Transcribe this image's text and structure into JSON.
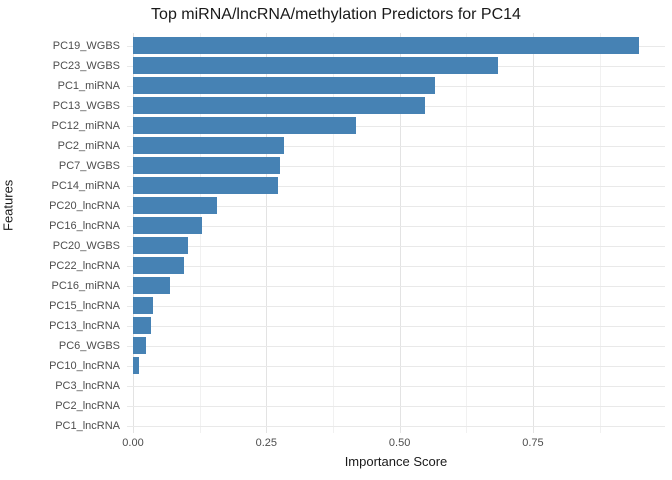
{
  "chart_data": {
    "type": "bar",
    "orientation": "horizontal",
    "title": "Top miRNA/lncRNA/methylation Predictors for PC14",
    "xlabel": "Importance Score",
    "ylabel": "Features",
    "categories": [
      "PC19_WGBS",
      "PC23_WGBS",
      "PC1_miRNA",
      "PC13_WGBS",
      "PC12_miRNA",
      "PC2_miRNA",
      "PC7_WGBS",
      "PC14_miRNA",
      "PC20_lncRNA",
      "PC16_lncRNA",
      "PC20_WGBS",
      "PC22_lncRNA",
      "PC16_miRNA",
      "PC15_lncRNA",
      "PC13_lncRNA",
      "PC6_WGBS",
      "PC10_lncRNA",
      "PC3_lncRNA",
      "PC2_lncRNA",
      "PC1_lncRNA"
    ],
    "values": [
      0.948,
      0.684,
      0.566,
      0.547,
      0.419,
      0.283,
      0.275,
      0.271,
      0.158,
      0.129,
      0.103,
      0.096,
      0.069,
      0.038,
      0.033,
      0.024,
      0.011,
      0.0,
      0.0,
      0.0
    ],
    "xlim": [
      0,
      1.0
    ],
    "x_major_ticks": [
      0.0,
      0.25,
      0.5,
      0.75
    ],
    "x_tick_labels": [
      "0.00",
      "0.25",
      "0.50",
      "0.75"
    ],
    "x_minor_ticks": [
      0.125,
      0.375,
      0.625,
      0.875
    ],
    "grid": true,
    "legend": "none",
    "colors": {
      "bar": "#4682B4",
      "grid_major": "#e3e3e3",
      "grid_minor": "#f1f1f1",
      "axis_text": "#4d4d4d",
      "title_text": "#1a1a1a"
    }
  }
}
